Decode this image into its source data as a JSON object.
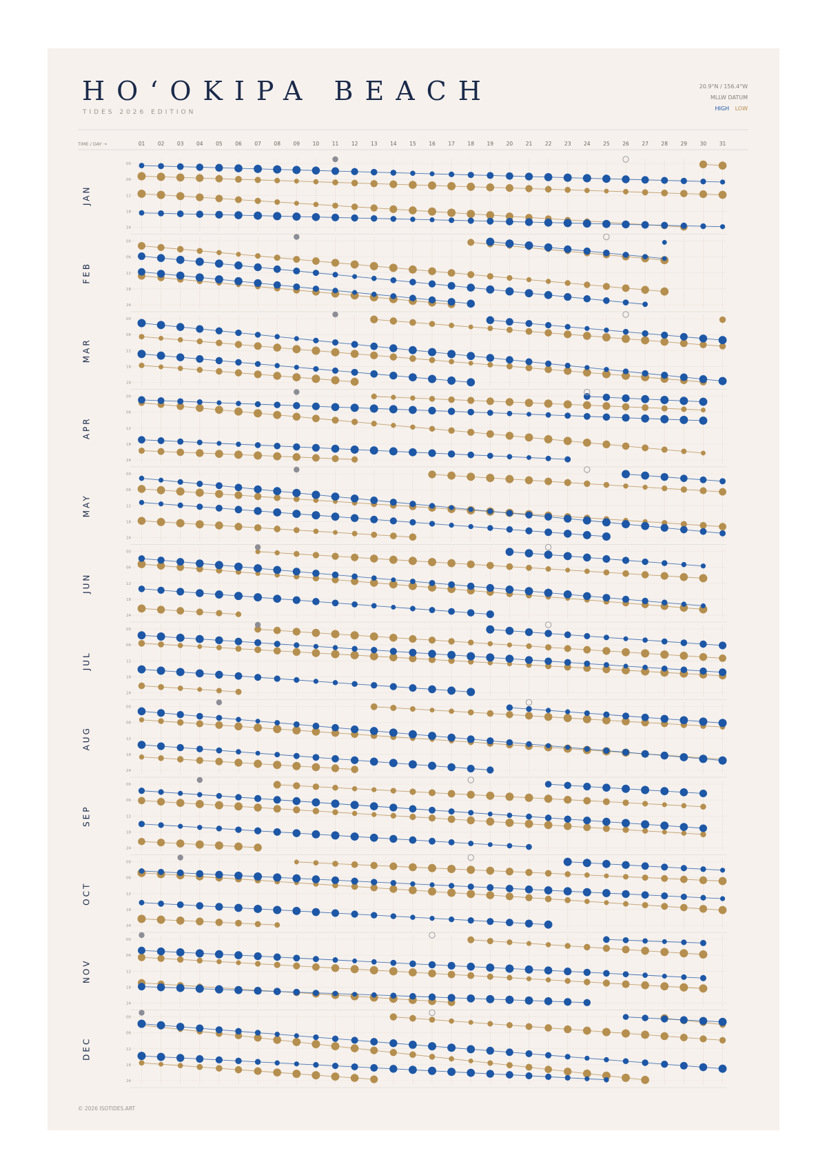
{
  "poster": {
    "title": "HO‘OKIPA BEACH",
    "subtitle": "TIDES 2026 EDITION",
    "coordinates": "20.9°N / 156.4°W",
    "datum": "MLLW DATUM",
    "legend_high": "HIGH",
    "legend_low": "LOW",
    "copyright": "© 2026 ISOTIDES.ART"
  },
  "colors": {
    "background": "#f6f1ed",
    "high": "#1d57a6",
    "low": "#b58f4f",
    "moon_new": "#8d8d95",
    "moon_full_stroke": "#9d9d9d",
    "grid": "#ebe2dc"
  },
  "chart_data": {
    "type": "scatter",
    "title": "HO‘OKIPA BEACH",
    "xlabel": "TIME / DAY →",
    "x_tick_labels": [
      "01",
      "02",
      "03",
      "04",
      "05",
      "06",
      "07",
      "08",
      "09",
      "10",
      "11",
      "12",
      "13",
      "14",
      "15",
      "16",
      "17",
      "18",
      "19",
      "20",
      "21",
      "22",
      "23",
      "24",
      "25",
      "26",
      "27",
      "28",
      "29",
      "30",
      "31"
    ],
    "y_tick_labels": [
      "00",
      "06",
      "12",
      "18",
      "24"
    ],
    "ylim_hours": [
      0,
      24
    ],
    "months": [
      {
        "label": "JAN",
        "days": 31,
        "hi": [
          [
            0.8,
            7
          ],
          [
            18.6,
            23.8
          ]
        ],
        "lo": [
          [
            4.8,
            11.8
          ],
          [
            11.4,
            24.8
          ]
        ],
        "new": 11,
        "full": 26
      },
      {
        "label": "FEB",
        "days": 28,
        "hi": [
          [
            5.7,
            24.5
          ],
          [
            11.6,
            30.6
          ]
        ],
        "lo": [
          [
            1.8,
            19
          ],
          [
            13.1,
            31.2
          ]
        ],
        "new": 9,
        "full": 25
      },
      {
        "label": "MAR",
        "days": 31,
        "hi": [
          [
            1.7,
            23.5
          ],
          [
            13.3,
            32.1
          ]
        ],
        "lo": [
          [
            6.8,
            24.4
          ],
          [
            17.6,
            34.4
          ]
        ],
        "new": 11,
        "full": 26
      },
      {
        "label": "APR",
        "days": 30,
        "hi": [
          [
            1.4,
            9.2
          ],
          [
            16.4,
            26.1
          ]
        ],
        "lo": [
          [
            2.5,
            21.4
          ],
          [
            20.5,
            29.2
          ]
        ],
        "new": 9,
        "full": 24
      },
      {
        "label": "MAY",
        "days": 31,
        "hi": [
          [
            1.7,
            22.4
          ],
          [
            10.8,
            26.8
          ]
        ],
        "lo": [
          [
            5.7,
            19.9
          ],
          [
            17.7,
            30.8
          ]
        ],
        "new": 9,
        "full": 24
      },
      {
        "label": "JUN",
        "days": 30,
        "hi": [
          [
            2.7,
            20.5
          ],
          [
            14.1,
            29.5
          ]
        ],
        "lo": [
          [
            4.8,
            21.8
          ],
          [
            21.5,
            34.1
          ]
        ],
        "new": 7,
        "full": 22
      },
      {
        "label": "JUL",
        "days": 31,
        "hi": [
          [
            2.4,
            16.3
          ],
          [
            15.2,
            30.2
          ]
        ],
        "lo": [
          [
            5.4,
            17.6
          ],
          [
            21.4,
            35
          ]
        ],
        "new": 7,
        "full": 22
      },
      {
        "label": "AUG",
        "days": 31,
        "hi": [
          [
            1.8,
            20.3
          ],
          [
            14.4,
            30.2
          ]
        ],
        "lo": [
          [
            5,
            19.8
          ],
          [
            19,
            31.7
          ]
        ],
        "new": 5,
        "full": 21
      },
      {
        "label": "SEP",
        "days": 30,
        "hi": [
          [
            2.5,
            16.6
          ],
          [
            15,
            27.5
          ]
        ],
        "lo": [
          [
            6.2,
            18.9
          ],
          [
            21.6,
            32.5
          ]
        ],
        "new": 4,
        "full": 18
      },
      {
        "label": "OCT",
        "days": 31,
        "hi": [
          [
            3.5,
            13.9
          ],
          [
            15.4,
            27.2
          ]
        ],
        "lo": [
          [
            4.2,
            18.2
          ],
          [
            21.5,
            31.3
          ]
        ],
        "new": 3,
        "full": 18
      },
      {
        "label": "NOV",
        "days": 30,
        "hi": [
          [
            4.2,
            14.6
          ],
          [
            17.8,
            25.4
          ]
        ],
        "lo": [
          [
            6.8,
            18.5
          ],
          [
            16.4,
            29.7
          ]
        ],
        "new": 1,
        "full": 16
      },
      {
        "label": "DEC",
        "days": 31,
        "hi": [
          [
            2.6,
            19.5
          ],
          [
            14.7,
            25.9
          ]
        ],
        "lo": [
          [
            3.1,
            26.9
          ],
          [
            17.3,
            32.8
          ]
        ],
        "new": 1,
        "full": 16
      }
    ]
  }
}
